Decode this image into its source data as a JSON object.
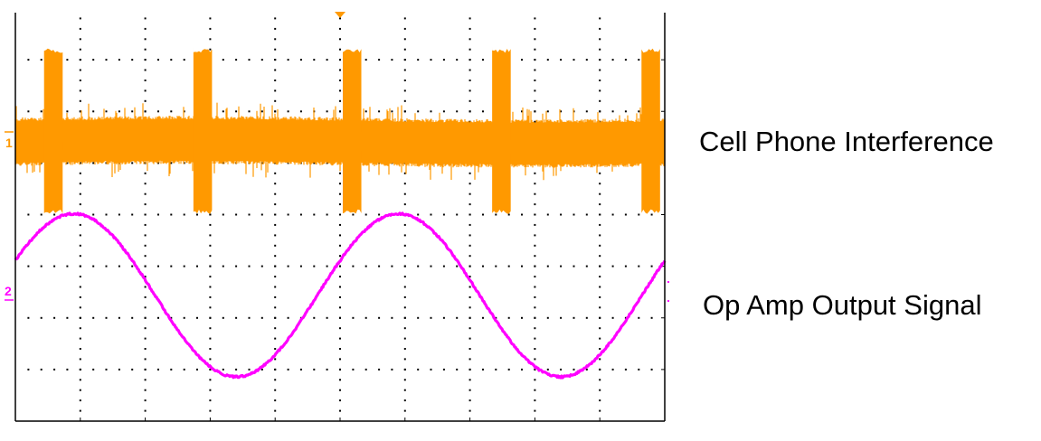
{
  "labels": {
    "channel1": "Cell Phone Interference",
    "channel2": "Op Amp Output Signal"
  },
  "markers": {
    "channel1": "1",
    "channel2": "2"
  },
  "colors": {
    "channel1": "#FF9900",
    "channel2": "#FF00FF",
    "grid": "#000000",
    "background": "#FFFFFF"
  },
  "chart_data": {
    "type": "line",
    "title": "",
    "xlabel": "",
    "ylabel": "",
    "grid": true,
    "grid_divisions": {
      "x": 10,
      "y": 8
    },
    "legend_position": "right",
    "trigger_marker": "top-center",
    "series": [
      {
        "name": "Cell Phone Interference",
        "channel": 1,
        "color": "#FF9900",
        "description": "Noisy baseline around div 2.7 from top with periodic RF bursts",
        "baseline_div_from_top": 2.5,
        "baseline_band_divs": 0.8,
        "burst_x_divs": [
          0.4,
          2.7,
          5.0,
          7.3,
          9.6
        ],
        "burst_width_divs": 0.3,
        "burst_span_divs": [
          0.8,
          3.9
        ]
      },
      {
        "name": "Op Amp Output Signal",
        "channel": 2,
        "color": "#FF00FF",
        "description": "Sine wave, ~2 cycles across 10 divisions",
        "period_divs": 5.0,
        "amplitude_divs": 1.58,
        "center_div_from_top": 5.65,
        "x_divs": [
          0,
          1.2,
          2.45,
          3.7,
          5.0,
          6.2,
          7.45,
          8.7,
          10.0
        ],
        "y_divs_from_center": [
          0.1,
          1.58,
          0.0,
          -1.58,
          0.0,
          1.58,
          0.0,
          -1.58,
          0.05
        ]
      }
    ]
  }
}
